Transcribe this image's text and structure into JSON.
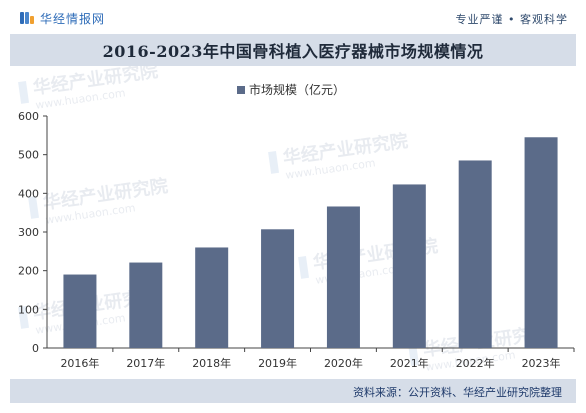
{
  "header": {
    "brand_name": "华经情报网",
    "slogan": "专业严谨 • 客观科学",
    "brand_colors": [
      "#2e6cb8",
      "#4a86cc",
      "#f0a030"
    ]
  },
  "chart_title": "2016-2023年中国骨科植入医疗器械市场规模情况",
  "source": "资料来源：公开资料、华经产业研究院整理",
  "watermark": {
    "text": "华经产业研究院",
    "subtext": "www.huaon.com"
  },
  "colors": {
    "bar": "#5b6b89",
    "band": "#d6dde8",
    "axis": "#444444"
  },
  "chart_data": {
    "type": "bar",
    "categories": [
      "2016年",
      "2017年",
      "2018年",
      "2019年",
      "2020年",
      "2021年",
      "2022年",
      "2023年"
    ],
    "series": [
      {
        "name": "市场规模（亿元）",
        "values": [
          190,
          221,
          260,
          307,
          366,
          423,
          485,
          545
        ]
      }
    ],
    "ylim": [
      0,
      600
    ],
    "yticks": [
      0,
      100,
      200,
      300,
      400,
      500,
      600
    ],
    "legend_position": "top-center",
    "grid": false
  }
}
